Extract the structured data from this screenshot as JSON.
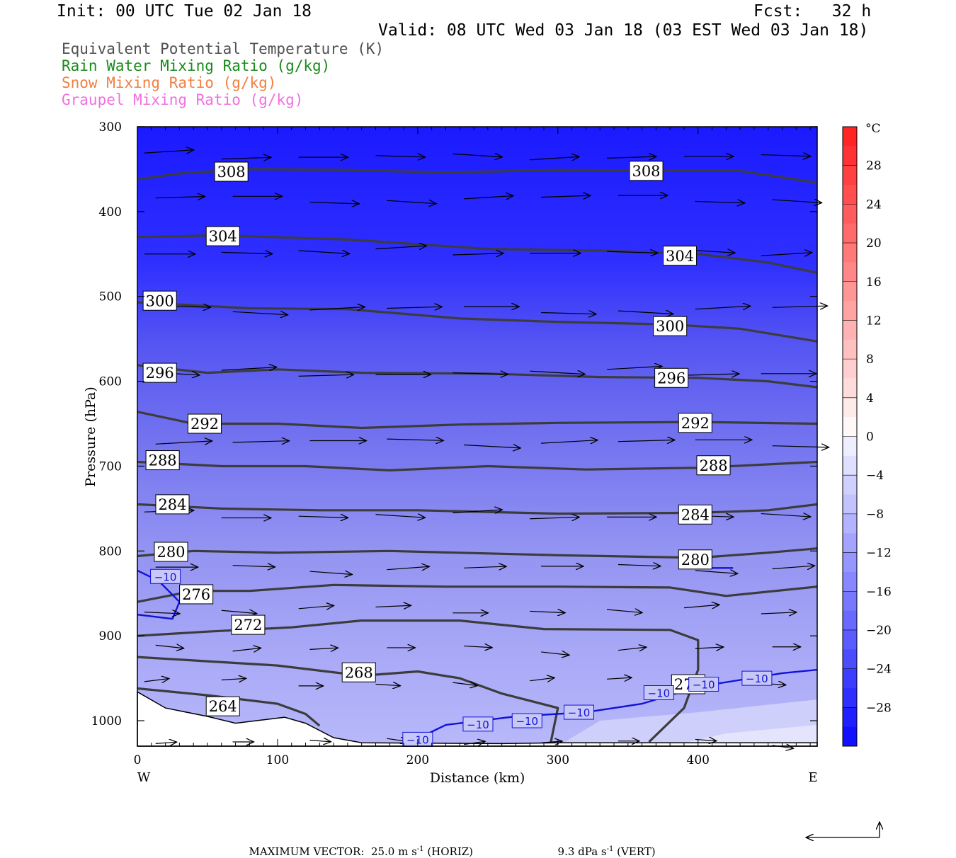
{
  "header": {
    "init": "Init: 00 UTC Tue 02 Jan 18",
    "fcst": "Fcst:   32 h",
    "valid": "Valid: 08 UTC Wed 03 Jan 18 (03 EST Wed 03 Jan 18)"
  },
  "legend": [
    {
      "label": "Equivalent Potential Temperature (K)",
      "color": "#505050"
    },
    {
      "label": "Rain Water Mixing Ratio (g/kg)",
      "color": "#1a8a1a"
    },
    {
      "label": "Snow Mixing Ratio (g/kg)",
      "color": "#f08040"
    },
    {
      "label": "Graupel Mixing Ratio (g/kg)",
      "color": "#f070e0"
    }
  ],
  "chart_data": {
    "type": "cross-section",
    "xlabel": "Distance (km)",
    "ylabel": "Pressure (hPa)",
    "x_range": [
      0,
      485
    ],
    "y_range": [
      300,
      1030
    ],
    "x_ticks": [
      0,
      100,
      200,
      300,
      400
    ],
    "y_ticks": [
      300,
      400,
      500,
      600,
      700,
      800,
      900,
      1000
    ],
    "x_end_labels": {
      "left": "W",
      "right": "E"
    },
    "colorbar": {
      "unit": "°C",
      "labels": [
        "28",
        "24",
        "20",
        "16",
        "12",
        "8",
        "4",
        "0",
        "−4",
        "−8",
        "−12",
        "−16",
        "−20",
        "−24",
        "−28"
      ],
      "values": [
        28,
        24,
        20,
        16,
        12,
        8,
        4,
        0,
        -4,
        -8,
        -12,
        -16,
        -20,
        -24,
        -28
      ],
      "range": [
        -32,
        32
      ]
    },
    "theta_e_contours": [
      {
        "label": "308",
        "points": [
          [
            0,
            362
          ],
          [
            30,
            355
          ],
          [
            80,
            350
          ],
          [
            150,
            351
          ],
          [
            220,
            354
          ],
          [
            300,
            351
          ],
          [
            380,
            352
          ],
          [
            430,
            352
          ],
          [
            485,
            366
          ]
        ],
        "label_at": [
          [
            67,
            353
          ],
          [
            363,
            352
          ]
        ]
      },
      {
        "label": "304",
        "points": [
          [
            0,
            430
          ],
          [
            60,
            428
          ],
          [
            150,
            433
          ],
          [
            250,
            444
          ],
          [
            330,
            446
          ],
          [
            400,
            450
          ],
          [
            450,
            460
          ],
          [
            485,
            472
          ]
        ],
        "label_at": [
          [
            61,
            429
          ],
          [
            387,
            452
          ]
        ]
      },
      {
        "label": "300",
        "points": [
          [
            0,
            507
          ],
          [
            80,
            514
          ],
          [
            150,
            515
          ],
          [
            230,
            526
          ],
          [
            300,
            530
          ],
          [
            380,
            533
          ],
          [
            430,
            538
          ],
          [
            485,
            553
          ]
        ],
        "label_at": [
          [
            16,
            505
          ],
          [
            380,
            535
          ]
        ]
      },
      {
        "label": "296",
        "points": [
          [
            0,
            581
          ],
          [
            50,
            590
          ],
          [
            100,
            586
          ],
          [
            160,
            590
          ],
          [
            250,
            591
          ],
          [
            330,
            595
          ],
          [
            400,
            596
          ],
          [
            450,
            600
          ],
          [
            485,
            607
          ]
        ],
        "label_at": [
          [
            16,
            590
          ],
          [
            381,
            596
          ]
        ]
      },
      {
        "label": "292",
        "points": [
          [
            0,
            636
          ],
          [
            40,
            650
          ],
          [
            100,
            650
          ],
          [
            160,
            655
          ],
          [
            230,
            651
          ],
          [
            300,
            649
          ],
          [
            400,
            648
          ],
          [
            485,
            650
          ]
        ],
        "label_at": [
          [
            48,
            650
          ],
          [
            398,
            649
          ]
        ]
      },
      {
        "label": "288",
        "points": [
          [
            0,
            695
          ],
          [
            60,
            700
          ],
          [
            120,
            700
          ],
          [
            180,
            705
          ],
          [
            250,
            700
          ],
          [
            320,
            704
          ],
          [
            400,
            702
          ],
          [
            485,
            695
          ]
        ],
        "label_at": [
          [
            18,
            693
          ],
          [
            411,
            699
          ]
        ]
      },
      {
        "label": "284",
        "points": [
          [
            0,
            745
          ],
          [
            60,
            750
          ],
          [
            130,
            752
          ],
          [
            200,
            752
          ],
          [
            300,
            756
          ],
          [
            400,
            755
          ],
          [
            450,
            752
          ],
          [
            485,
            745
          ]
        ],
        "label_at": [
          [
            25,
            745
          ],
          [
            398,
            757
          ]
        ]
      },
      {
        "label": "280",
        "points": [
          [
            0,
            806
          ],
          [
            40,
            800
          ],
          [
            100,
            802
          ],
          [
            180,
            800
          ],
          [
            300,
            805
          ],
          [
            400,
            808
          ],
          [
            450,
            802
          ],
          [
            485,
            797
          ]
        ],
        "label_at": [
          [
            24,
            801
          ],
          [
            398,
            810
          ]
        ]
      },
      {
        "label": "276",
        "points": [
          [
            0,
            860
          ],
          [
            40,
            847
          ],
          [
            80,
            847
          ],
          [
            140,
            840
          ],
          [
            220,
            842
          ],
          [
            300,
            842
          ],
          [
            380,
            843
          ],
          [
            420,
            853
          ],
          [
            485,
            842
          ]
        ],
        "label_at": [
          [
            42,
            851
          ]
        ]
      },
      {
        "label": "272",
        "points": [
          [
            0,
            900
          ],
          [
            50,
            895
          ],
          [
            110,
            890
          ],
          [
            160,
            882
          ],
          [
            230,
            882
          ],
          [
            290,
            892
          ],
          [
            380,
            893
          ],
          [
            400,
            905
          ],
          [
            400,
            940
          ],
          [
            390,
            985
          ],
          [
            365,
            1025
          ]
        ],
        "label_at": [
          [
            79,
            887
          ],
          [
            393,
            957
          ]
        ]
      },
      {
        "label": "268",
        "points": [
          [
            0,
            925
          ],
          [
            50,
            930
          ],
          [
            100,
            935
          ],
          [
            160,
            947
          ],
          [
            200,
            942
          ],
          [
            230,
            950
          ],
          [
            260,
            968
          ],
          [
            300,
            985
          ],
          [
            295,
            1025
          ]
        ],
        "label_at": [
          [
            158,
            943
          ]
        ]
      },
      {
        "label": "264",
        "points": [
          [
            0,
            962
          ],
          [
            50,
            970
          ],
          [
            100,
            980
          ],
          [
            120,
            992
          ],
          [
            130,
            1006
          ]
        ],
        "label_at": [
          [
            61,
            983
          ]
        ]
      }
    ],
    "temp_contours_minus10": [
      {
        "points": [
          [
            0,
            823
          ],
          [
            15,
            835
          ],
          [
            30,
            860
          ],
          [
            25,
            880
          ],
          [
            0,
            875
          ]
        ],
        "labels_at": [
          [
            20,
            830
          ]
        ]
      },
      {
        "points": [
          [
            195,
            1025
          ],
          [
            220,
            1005
          ],
          [
            270,
            995
          ],
          [
            320,
            990
          ],
          [
            360,
            980
          ],
          [
            400,
            960
          ],
          [
            430,
            952
          ],
          [
            460,
            944
          ],
          [
            485,
            940
          ]
        ],
        "labels_at": [
          [
            200,
            1022
          ],
          [
            243,
            1004
          ],
          [
            278,
            1000
          ],
          [
            315,
            990
          ],
          [
            372,
            967
          ],
          [
            404,
            957
          ],
          [
            442,
            950
          ]
        ]
      },
      {
        "points": [
          [
            410,
            820
          ],
          [
            425,
            820
          ]
        ],
        "labels_at": []
      }
    ],
    "max_vector_horiz": "25.0",
    "max_vector_vert": "9.3"
  },
  "footer": {
    "prefix": "MAXIMUM VECTOR:",
    "horiz_value": "25.0 m s",
    "horiz_suffix": " (HORIZ)",
    "vert_value": "9.3 dPa s",
    "vert_suffix": " (VERT)",
    "exp": "-1"
  }
}
